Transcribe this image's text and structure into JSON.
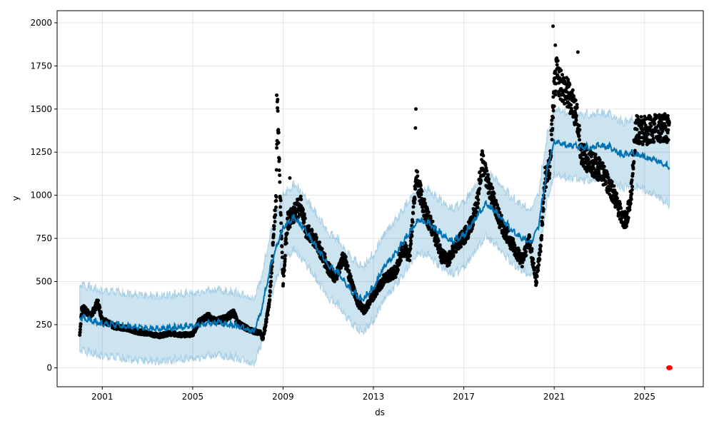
{
  "chart_data": {
    "type": "line",
    "title": "",
    "xlabel": "ds",
    "ylabel": "y",
    "xlim": [
      1999.0,
      2027.6
    ],
    "ylim": [
      -110,
      2070
    ],
    "grid": true,
    "xticks": [
      2001,
      2005,
      2009,
      2013,
      2017,
      2021,
      2025
    ],
    "yticks": [
      0,
      250,
      500,
      750,
      1000,
      1250,
      1500,
      1750,
      2000
    ],
    "colors": {
      "actual": "#000000",
      "forecast": "#0072B2",
      "band": "#0072B2",
      "future": "#ff0000"
    },
    "band_halfwidth": 190,
    "forecast": [
      [
        2000,
        280
      ],
      [
        2001,
        240
      ],
      [
        2002,
        230
      ],
      [
        2003,
        215
      ],
      [
        2004,
        215
      ],
      [
        2005,
        230
      ],
      [
        2006,
        250
      ],
      [
        2007,
        230
      ],
      [
        2007.7,
        200
      ],
      [
        2008,
        300
      ],
      [
        2008.5,
        600
      ],
      [
        2009,
        800
      ],
      [
        2009.5,
        860
      ],
      [
        2010,
        780
      ],
      [
        2010.5,
        680
      ],
      [
        2011,
        580
      ],
      [
        2011.5,
        530
      ],
      [
        2012,
        430
      ],
      [
        2012.5,
        380
      ],
      [
        2013,
        450
      ],
      [
        2013.5,
        580
      ],
      [
        2014,
        650
      ],
      [
        2014.5,
        750
      ],
      [
        2015,
        850
      ],
      [
        2015.5,
        820
      ],
      [
        2016,
        760
      ],
      [
        2016.5,
        720
      ],
      [
        2017,
        750
      ],
      [
        2017.5,
        850
      ],
      [
        2018,
        940
      ],
      [
        2018.5,
        880
      ],
      [
        2019,
        800
      ],
      [
        2019.5,
        740
      ],
      [
        2020,
        720
      ],
      [
        2020.3,
        800
      ],
      [
        2020.7,
        1150
      ],
      [
        2021,
        1300
      ],
      [
        2021.5,
        1280
      ],
      [
        2022,
        1270
      ],
      [
        2022.5,
        1260
      ],
      [
        2023,
        1280
      ],
      [
        2023.5,
        1260
      ],
      [
        2024,
        1220
      ],
      [
        2024.5,
        1230
      ],
      [
        2025,
        1210
      ],
      [
        2025.5,
        1190
      ],
      [
        2026.1,
        1150
      ]
    ],
    "actual": [
      [
        2000.0,
        190
      ],
      [
        2000.1,
        350
      ],
      [
        2000.5,
        300
      ],
      [
        2000.8,
        380
      ],
      [
        2001,
        280
      ],
      [
        2001.5,
        240
      ],
      [
        2002,
        230
      ],
      [
        2002.5,
        210
      ],
      [
        2003,
        200
      ],
      [
        2003.5,
        185
      ],
      [
        2004,
        200
      ],
      [
        2004.5,
        190
      ],
      [
        2005,
        195
      ],
      [
        2005.3,
        270
      ],
      [
        2005.7,
        300
      ],
      [
        2006,
        270
      ],
      [
        2006.5,
        290
      ],
      [
        2006.8,
        320
      ],
      [
        2007,
        260
      ],
      [
        2007.5,
        220
      ],
      [
        2008,
        200
      ],
      [
        2008.1,
        170
      ],
      [
        2008.2,
        230
      ],
      [
        2008.4,
        380
      ],
      [
        2008.6,
        800
      ],
      [
        2008.7,
        1000
      ],
      [
        2008.75,
        1550
      ],
      [
        2008.9,
        900
      ],
      [
        2009.0,
        500
      ],
      [
        2009.2,
        850
      ],
      [
        2009.5,
        900
      ],
      [
        2009.8,
        950
      ],
      [
        2010,
        800
      ],
      [
        2010.5,
        720
      ],
      [
        2011,
        580
      ],
      [
        2011.3,
        520
      ],
      [
        2011.7,
        650
      ],
      [
        2012,
        500
      ],
      [
        2012.3,
        380
      ],
      [
        2012.6,
        330
      ],
      [
        2013,
        420
      ],
      [
        2013.5,
        520
      ],
      [
        2014,
        560
      ],
      [
        2014.3,
        700
      ],
      [
        2014.6,
        650
      ],
      [
        2014.9,
        1100
      ],
      [
        2015,
        1050
      ],
      [
        2015.3,
        900
      ],
      [
        2015.7,
        780
      ],
      [
        2016,
        650
      ],
      [
        2016.3,
        620
      ],
      [
        2016.6,
        700
      ],
      [
        2017,
        760
      ],
      [
        2017.3,
        820
      ],
      [
        2017.6,
        950
      ],
      [
        2017.8,
        1200
      ],
      [
        2018,
        1100
      ],
      [
        2018.3,
        980
      ],
      [
        2018.6,
        850
      ],
      [
        2019,
        750
      ],
      [
        2019.3,
        680
      ],
      [
        2019.6,
        620
      ],
      [
        2019.9,
        750
      ],
      [
        2020.2,
        500
      ],
      [
        2020.4,
        700
      ],
      [
        2020.6,
        1100
      ],
      [
        2020.8,
        1150
      ],
      [
        2021,
        1600
      ],
      [
        2021.1,
        1700
      ],
      [
        2021.5,
        1600
      ],
      [
        2021.8,
        1550
      ],
      [
        2022,
        1450
      ],
      [
        2022.2,
        1250
      ],
      [
        2022.5,
        1200
      ],
      [
        2023,
        1150
      ],
      [
        2023.5,
        1050
      ],
      [
        2023.8,
        950
      ],
      [
        2024,
        870
      ],
      [
        2024.2,
        850
      ],
      [
        2024.4,
        1000
      ],
      [
        2024.6,
        1380
      ],
      [
        2025,
        1375
      ],
      [
        2025.5,
        1385
      ],
      [
        2026.1,
        1390
      ]
    ],
    "outliers": [
      [
        2008.72,
        1580
      ],
      [
        2014.88,
        1500
      ],
      [
        2014.86,
        1390
      ],
      [
        2020.95,
        1980
      ],
      [
        2021.05,
        1870
      ],
      [
        2022.05,
        1830
      ],
      [
        2009.3,
        1100
      ]
    ],
    "future_points": [
      [
        2026.1,
        0
      ]
    ]
  }
}
